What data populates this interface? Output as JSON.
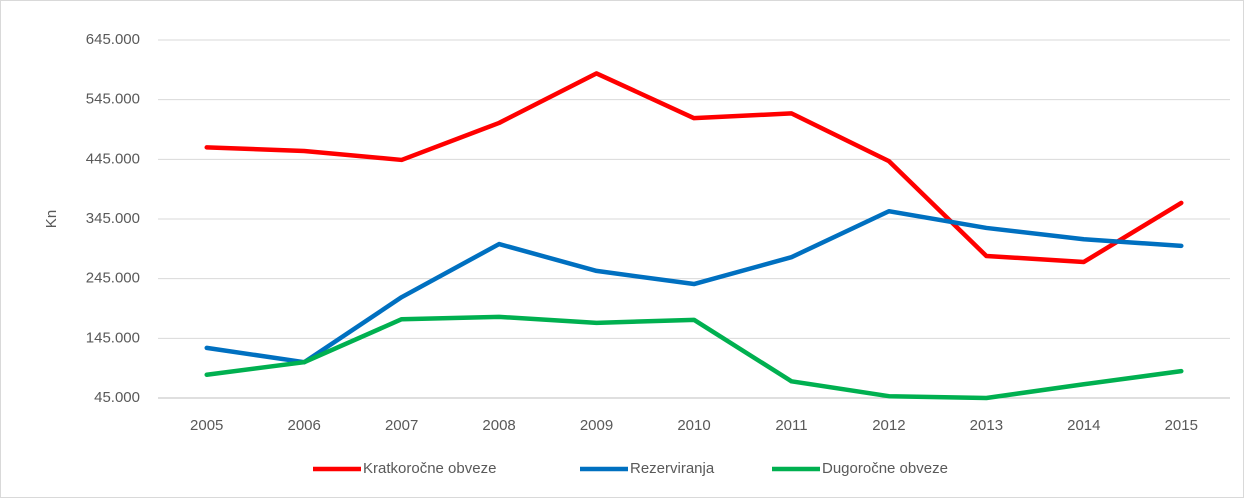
{
  "chart_data": {
    "type": "line",
    "y_label": "Kn",
    "categories": [
      "2005",
      "2006",
      "2007",
      "2008",
      "2009",
      "2010",
      "2011",
      "2012",
      "2013",
      "2014",
      "2015"
    ],
    "series": [
      {
        "name": "Kratkoročne obveze",
        "color": "#ff0000",
        "values": [
          465000,
          459000,
          444000,
          506000,
          589000,
          514000,
          522000,
          442000,
          283000,
          273000,
          372000
        ]
      },
      {
        "name": "Rezerviranja",
        "color": "#0070c0",
        "values": [
          129000,
          105000,
          214000,
          303000,
          258000,
          236000,
          281000,
          358000,
          330000,
          311000,
          300000
        ]
      },
      {
        "name": "Dugoročne obveze",
        "color": "#00b050",
        "values": [
          84000,
          105000,
          177000,
          181000,
          171000,
          176000,
          73000,
          48000,
          45000,
          68000,
          90000
        ]
      }
    ],
    "ylim": [
      45000,
      645000
    ],
    "yticks": [
      {
        "value": 45000,
        "label": "45.000"
      },
      {
        "value": 145000,
        "label": "145.000"
      },
      {
        "value": 245000,
        "label": "245.000"
      },
      {
        "value": 345000,
        "label": "345.000"
      },
      {
        "value": 445000,
        "label": "445.000"
      },
      {
        "value": 545000,
        "label": "545.000"
      },
      {
        "value": 645000,
        "label": "645.000"
      }
    ],
    "grid": true,
    "legend": "bottom"
  }
}
